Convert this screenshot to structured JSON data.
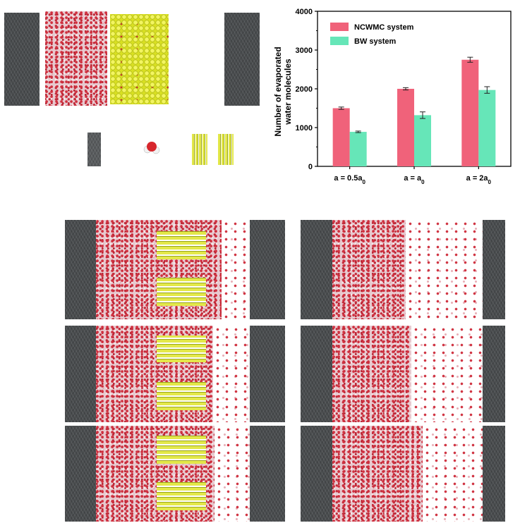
{
  "chart_data": {
    "type": "bar",
    "categories": [
      "a = 0.5a0",
      "a = a0",
      "a = 2a0"
    ],
    "category_labels": [
      {
        "main": "a = 0.5a",
        "sub": "0"
      },
      {
        "main": "a = a",
        "sub": "0"
      },
      {
        "main": "a = 2a",
        "sub": "0"
      }
    ],
    "series": [
      {
        "name": "NCWMC system",
        "color": "#f0627a",
        "values": [
          1500,
          2000,
          2750
        ],
        "errors": [
          30,
          30,
          65
        ]
      },
      {
        "name": "BW system",
        "color": "#66e6b8",
        "values": [
          890,
          1320,
          1970
        ],
        "errors": [
          20,
          85,
          85
        ]
      }
    ],
    "ylabel_lines": [
      "Number of evaporated",
      "water molecules"
    ],
    "ylim": [
      0,
      4000
    ],
    "yticks": [
      0,
      1000,
      2000,
      3000,
      4000
    ],
    "legend": "top-left",
    "grid": false
  }
}
